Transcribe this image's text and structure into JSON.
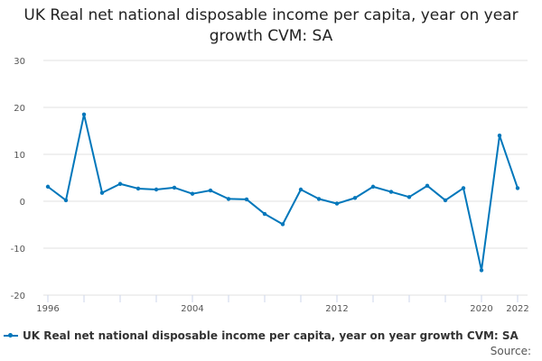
{
  "chart_data": {
    "type": "line",
    "title": "UK Real net national disposable income per capita, year on year growth CVM: SA",
    "x": [
      1996,
      1997,
      1998,
      1999,
      2000,
      2001,
      2002,
      2003,
      2004,
      2005,
      2006,
      2007,
      2008,
      2009,
      2010,
      2011,
      2012,
      2013,
      2014,
      2015,
      2016,
      2017,
      2018,
      2019,
      2020,
      2021,
      2022
    ],
    "series": [
      {
        "name": "UK Real net national disposable income per capita, year on year growth CVM: SA",
        "values": [
          3.1,
          0.2,
          18.5,
          1.8,
          3.7,
          2.7,
          2.5,
          2.9,
          1.6,
          2.3,
          0.5,
          0.4,
          -2.7,
          -4.9,
          2.5,
          0.5,
          -0.5,
          0.7,
          3.1,
          2.0,
          0.9,
          3.3,
          0.2,
          2.8,
          -14.7,
          14.0,
          2.8
        ],
        "color": "#0077bb"
      }
    ],
    "xlim": [
      1996,
      2022
    ],
    "ylim": [
      -20,
      30
    ],
    "y_ticks": [
      "30",
      "20",
      "10",
      "0",
      "-10",
      "-20"
    ],
    "x_tick_labels": [
      "1996",
      "2004",
      "2012",
      "2020",
      "2022"
    ],
    "grid": true,
    "legend": "bottom",
    "source_label": "Source:"
  }
}
